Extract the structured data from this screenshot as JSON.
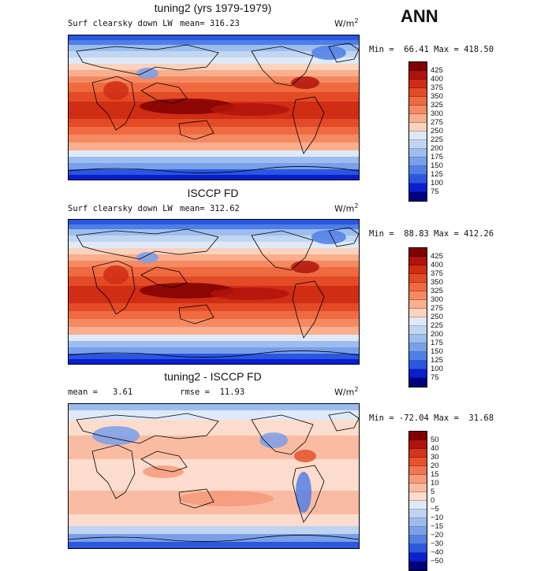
{
  "season": "ANN",
  "unit": "W/m",
  "unit_exp": "2",
  "panels": [
    {
      "title": "tuning2 (yrs 1979-1979)",
      "variable": "Surf clearsky down LW",
      "stat_text": "mean= 316.23",
      "minmax": "Min =  66.41 Max = 418.50",
      "kind": "abs",
      "levels": [
        "425",
        "400",
        "375",
        "350",
        "325",
        "300",
        "275",
        "250",
        "225",
        "200",
        "175",
        "150",
        "125",
        "100",
        "75"
      ]
    },
    {
      "title": "ISCCP FD",
      "variable": "Surf clearsky down LW",
      "stat_text": "mean= 312.62",
      "minmax": "Min =  88.83 Max = 412.26",
      "kind": "abs",
      "levels": [
        "425",
        "400",
        "375",
        "350",
        "325",
        "300",
        "275",
        "250",
        "225",
        "200",
        "175",
        "150",
        "125",
        "100",
        "75"
      ]
    },
    {
      "title": "tuning2 - ISCCP FD",
      "variable": "mean =   3.61",
      "stat_text": "rmse =  11.93",
      "minmax": "Min = -72.04 Max =  31.68",
      "kind": "diff",
      "levels": [
        "50",
        "40",
        "30",
        "20",
        "15",
        "10",
        "5",
        "0",
        "−5",
        "−10",
        "−15",
        "−20",
        "−30",
        "−40",
        "−50"
      ]
    }
  ],
  "colors": {
    "abs": [
      "#800000",
      "#b0140c",
      "#cf2d14",
      "#e34a26",
      "#ef6a41",
      "#f58a62",
      "#f9ae8d",
      "#fbd2bd",
      "#dfe9f7",
      "#c1d6f2",
      "#9dbdee",
      "#789fe9",
      "#4f7fe6",
      "#2a56e0",
      "#0a1ed0",
      "#000080"
    ],
    "diff": [
      "#800000",
      "#b0140c",
      "#d4341a",
      "#e5532d",
      "#f07650",
      "#f69a7a",
      "#f9bca2",
      "#fcdccd",
      "#dfe9f7",
      "#bfd3f2",
      "#9cbced",
      "#7a9fe9",
      "#5480e5",
      "#2c58df",
      "#0b20cf",
      "#000080"
    ]
  }
}
